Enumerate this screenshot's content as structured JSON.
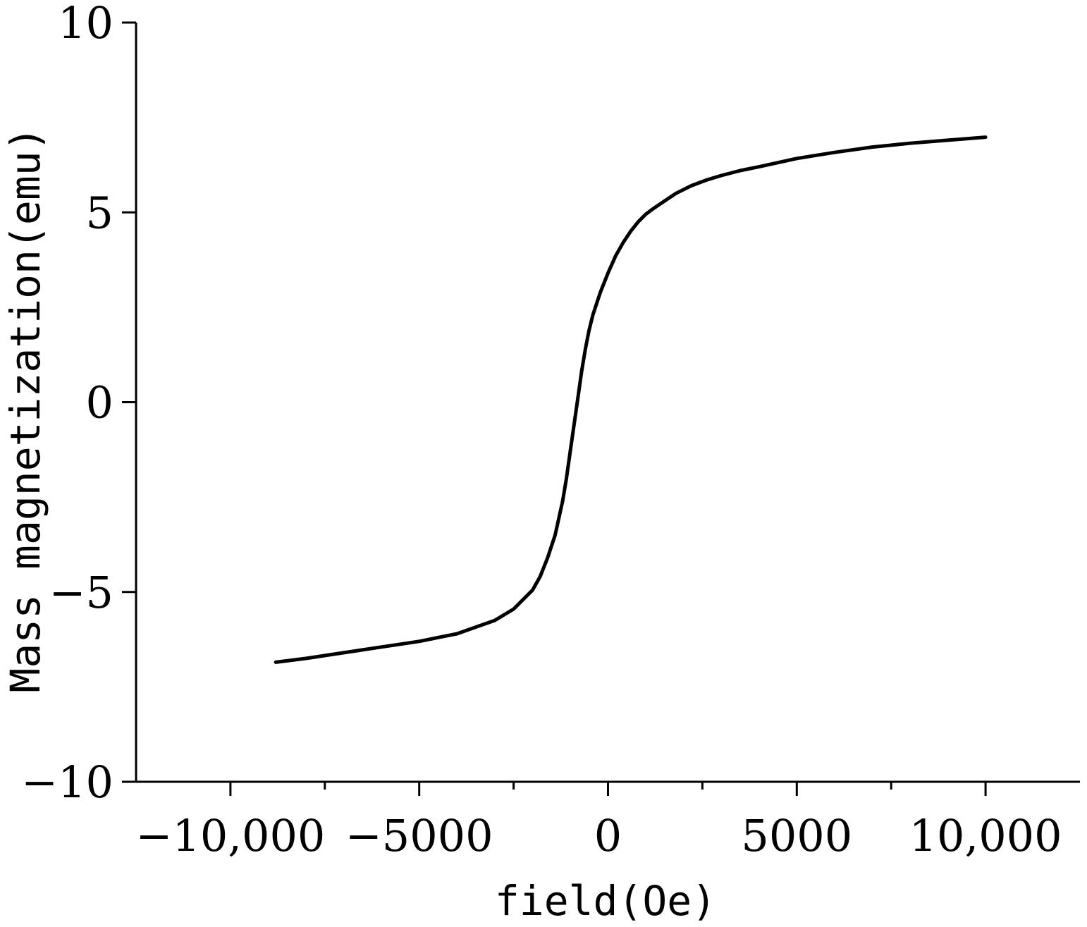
{
  "chart_data": {
    "type": "line",
    "title": "",
    "xlabel": "field(Oe)",
    "ylabel": "Mass magnetization(emu)",
    "xlim": [
      -12500,
      12500
    ],
    "ylim": [
      -10,
      10
    ],
    "x_ticks": [
      -10000,
      -5000,
      0,
      5000,
      10000
    ],
    "x_tick_labels": [
      "−10,000",
      "−5000",
      "0",
      "5000",
      "10,000"
    ],
    "x_minor_ticks": [
      -7500,
      -2500,
      2500,
      7500
    ],
    "y_ticks": [
      -10,
      -5,
      0,
      5,
      10
    ],
    "y_tick_labels": [
      "−10",
      "−5",
      "0",
      "5",
      "10"
    ],
    "grid": false,
    "line_color": "#000000",
    "series": [
      {
        "x": [
          -8800,
          -8000,
          -7000,
          -6000,
          -5000,
          -4000,
          -3000,
          -2500,
          -2000,
          -1800,
          -1600,
          -1400,
          -1200,
          -1100,
          -1000,
          -900,
          -800,
          -700,
          -600,
          -500,
          -400,
          -300,
          -200,
          -100,
          0,
          200,
          400,
          600,
          800,
          1000,
          1200,
          1500,
          1800,
          2200,
          2600,
          3000,
          3500,
          4000,
          5000,
          6000,
          7000,
          8000,
          9000,
          10000
        ],
        "y": [
          -6.85,
          -6.75,
          -6.6,
          -6.45,
          -6.3,
          -6.1,
          -5.75,
          -5.45,
          -4.95,
          -4.6,
          -4.1,
          -3.5,
          -2.6,
          -2.0,
          -1.3,
          -0.6,
          0.1,
          0.8,
          1.4,
          1.9,
          2.3,
          2.6,
          2.9,
          3.15,
          3.4,
          3.85,
          4.2,
          4.5,
          4.75,
          4.95,
          5.1,
          5.3,
          5.5,
          5.7,
          5.85,
          5.97,
          6.1,
          6.2,
          6.42,
          6.58,
          6.72,
          6.82,
          6.9,
          6.98
        ]
      }
    ]
  }
}
